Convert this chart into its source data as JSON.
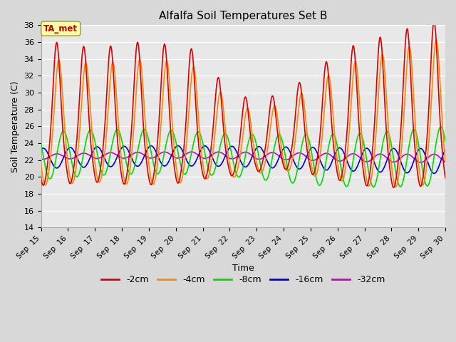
{
  "title": "Alfalfa Soil Temperatures Set B",
  "xlabel": "Time",
  "ylabel": "Soil Temperature (C)",
  "ylim": [
    14,
    38
  ],
  "yticks": [
    14,
    16,
    18,
    20,
    22,
    24,
    26,
    28,
    30,
    32,
    34,
    36,
    38
  ],
  "xtick_labels": [
    "Sep 15",
    "Sep 16",
    "Sep 17",
    "Sep 18",
    "Sep 19",
    "Sep 20",
    "Sep 21",
    "Sep 22",
    "Sep 23",
    "Sep 24",
    "Sep 25",
    "Sep 26",
    "Sep 27",
    "Sep 28",
    "Sep 29",
    "Sep 30"
  ],
  "series_colors": {
    "-2cm": "#dd0000",
    "-4cm": "#ff8800",
    "-8cm": "#00dd00",
    "-16cm": "#0000dd",
    "-32cm": "#cc00cc"
  },
  "annotation_text": "TA_met",
  "annotation_color": "#cc0000",
  "annotation_bg": "#ffffaa",
  "annotation_border": "#999933",
  "fig_bg_color": "#d8d8d8",
  "plot_bg_color": "#e8e8e8",
  "grid_color": "#ffffff",
  "title_fontsize": 11,
  "axis_label_fontsize": 9,
  "tick_fontsize": 8,
  "legend_fontsize": 9,
  "linewidth": 1.2
}
